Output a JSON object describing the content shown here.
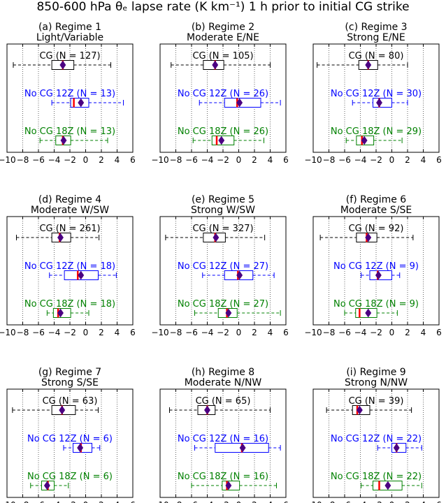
{
  "title": "850-600 hPa θₑ lapse rate (K km⁻¹) 1 h prior to initial CG strike",
  "colors": {
    "CG": "#000000",
    "No CG 12Z": "#0000ff",
    "No CG 18Z": "#008000",
    "median": "#ff0000",
    "mean": "#4b0082"
  },
  "chart_data": {
    "type": "boxplot",
    "orientation": "horizontal",
    "xlim": [
      -10,
      6
    ],
    "xticks": [
      -10,
      -8,
      -6,
      -4,
      -2,
      0,
      2,
      4,
      6
    ],
    "grid": "vertical dotted",
    "panels": [
      {
        "label": "(a) Regime 1",
        "subtitle": "Light/Variable",
        "groups": [
          {
            "name": "CG",
            "n": 127,
            "whislo": -9.2,
            "q1": -4.3,
            "med": -2.9,
            "q3": -1.5,
            "whishi": 3.2,
            "mean": -2.9
          },
          {
            "name": "No CG 12Z",
            "n": 13,
            "whislo": -4.3,
            "q1": -1.9,
            "med": -1.5,
            "q3": 0.4,
            "whishi": 4.8,
            "mean": -0.6
          },
          {
            "name": "No CG 18Z",
            "n": 13,
            "whislo": -5.8,
            "q1": -3.8,
            "med": -2.9,
            "q3": -1.9,
            "whishi": 2.8,
            "mean": -2.8
          }
        ]
      },
      {
        "label": "(b) Regime 2",
        "subtitle": "Moderate E/NE",
        "groups": [
          {
            "name": "CG",
            "n": 105,
            "whislo": -8.6,
            "q1": -4.5,
            "med": -3.0,
            "q3": -1.9,
            "whishi": 4.0,
            "mean": -3.0
          },
          {
            "name": "No CG 12Z",
            "n": 26,
            "whislo": -5.0,
            "q1": -1.8,
            "med": -0.2,
            "q3": 2.8,
            "whishi": 5.3,
            "mean": 0.1
          },
          {
            "name": "No CG 18Z",
            "n": 26,
            "whislo": -5.8,
            "q1": -3.4,
            "med": -2.8,
            "q3": -0.6,
            "whishi": 3.2,
            "mean": -2.2
          }
        ]
      },
      {
        "label": "(c) Regime 3",
        "subtitle": "Strong E/NE",
        "groups": [
          {
            "name": "CG",
            "n": 80,
            "whislo": -9.5,
            "q1": -4.2,
            "med": -3.0,
            "q3": -1.8,
            "whishi": 2.0,
            "mean": -3.0
          },
          {
            "name": "No CG 12Z",
            "n": 30,
            "whislo": -5.0,
            "q1": -2.4,
            "med": -1.6,
            "q3": 0.0,
            "whishi": 2.0,
            "mean": -1.6
          },
          {
            "name": "No CG 18Z",
            "n": 29,
            "whislo": -5.8,
            "q1": -4.5,
            "med": -3.8,
            "q3": -2.3,
            "whishi": 1.3,
            "mean": -3.5
          }
        ]
      },
      {
        "label": "(d) Regime 4",
        "subtitle": "Moderate W/SW",
        "groups": [
          {
            "name": "CG",
            "n": 261,
            "whislo": -8.8,
            "q1": -4.3,
            "med": -3.3,
            "q3": -1.9,
            "whishi": 1.7,
            "mean": -3.2
          },
          {
            "name": "No CG 12Z",
            "n": 18,
            "whislo": -4.6,
            "q1": -2.7,
            "med": -1.0,
            "q3": 1.6,
            "whishi": 3.9,
            "mean": -0.6
          },
          {
            "name": "No CG 18Z",
            "n": 18,
            "whislo": -4.9,
            "q1": -4.1,
            "med": -3.5,
            "q3": -1.9,
            "whishi": 0.4,
            "mean": -3.2
          }
        ]
      },
      {
        "label": "(e) Regime 5",
        "subtitle": "Strong W/SW",
        "groups": [
          {
            "name": "CG",
            "n": 327,
            "whislo": -9.3,
            "q1": -4.5,
            "med": -3.0,
            "q3": -1.7,
            "whishi": 3.3,
            "mean": -2.9
          },
          {
            "name": "No CG 12Z",
            "n": 27,
            "whislo": -4.6,
            "q1": -1.8,
            "med": -0.1,
            "q3": 1.8,
            "whishi": 4.5,
            "mean": 0.1
          },
          {
            "name": "No CG 18Z",
            "n": 27,
            "whislo": -5.6,
            "q1": -2.6,
            "med": -1.5,
            "q3": -0.2,
            "whishi": 5.3,
            "mean": -1.3
          }
        ]
      },
      {
        "label": "(f) Regime 6",
        "subtitle": "Moderate S/SE",
        "groups": [
          {
            "name": "CG",
            "n": 92,
            "whislo": -9.1,
            "q1": -4.5,
            "med": -3.2,
            "q3": -1.9,
            "whishi": 2.7,
            "mean": -3.0
          },
          {
            "name": "No CG 12Z",
            "n": 9,
            "whislo": -3.9,
            "q1": -2.8,
            "med": -1.8,
            "q3": 0.0,
            "whishi": 1.0,
            "mean": -1.7
          },
          {
            "name": "No CG 18Z",
            "n": 9,
            "whislo": -6.0,
            "q1": -4.6,
            "med": -4.1,
            "q3": -1.9,
            "whishi": 0.7,
            "mean": -3.0
          }
        ]
      },
      {
        "label": "(g) Regime 7",
        "subtitle": "Strong S/SE",
        "groups": [
          {
            "name": "CG",
            "n": 63,
            "whislo": -9.3,
            "q1": -4.3,
            "med": -3.0,
            "q3": -1.3,
            "whishi": 1.6,
            "mean": -3.0
          },
          {
            "name": "No CG 12Z",
            "n": 6,
            "whislo": -2.8,
            "q1": -1.6,
            "med": -0.6,
            "q3": 0.8,
            "whishi": 1.8,
            "mean": -0.7
          },
          {
            "name": "No CG 18Z",
            "n": 6,
            "whislo": -7.0,
            "q1": -5.6,
            "med": -4.8,
            "q3": -4.0,
            "whishi": -2.2,
            "mean": -4.9
          }
        ]
      },
      {
        "label": "(h) Regime 8",
        "subtitle": "Moderate N/NW",
        "groups": [
          {
            "name": "CG",
            "n": 65,
            "whislo": -8.8,
            "q1": -5.2,
            "med": -4.0,
            "q3": -3.0,
            "whishi": 4.0,
            "mean": -4.0
          },
          {
            "name": "No CG 12Z",
            "n": 16,
            "whislo": -5.6,
            "q1": -3.0,
            "med": 0.4,
            "q3": 3.8,
            "whishi": 5.3,
            "mean": 0.5
          },
          {
            "name": "No CG 18Z",
            "n": 16,
            "whislo": -6.0,
            "q1": -2.1,
            "med": -1.5,
            "q3": 0.1,
            "whishi": 4.8,
            "mean": -1.3
          }
        ]
      },
      {
        "label": "(i) Regime 9",
        "subtitle": "Strong N/NW",
        "groups": [
          {
            "name": "CG",
            "n": 39,
            "whislo": -8.3,
            "q1": -5.0,
            "med": -4.4,
            "q3": -2.8,
            "whishi": 2.5,
            "mean": -4.1
          },
          {
            "name": "No CG 12Z",
            "n": 22,
            "whislo": -1.8,
            "q1": 0.0,
            "med": 0.6,
            "q3": 1.8,
            "whishi": 3.8,
            "mean": 0.6
          },
          {
            "name": "No CG 18Z",
            "n": 22,
            "whislo": -3.9,
            "q1": -2.4,
            "med": -1.6,
            "q3": 1.3,
            "whishi": 3.8,
            "mean": -0.5
          }
        ]
      }
    ]
  }
}
